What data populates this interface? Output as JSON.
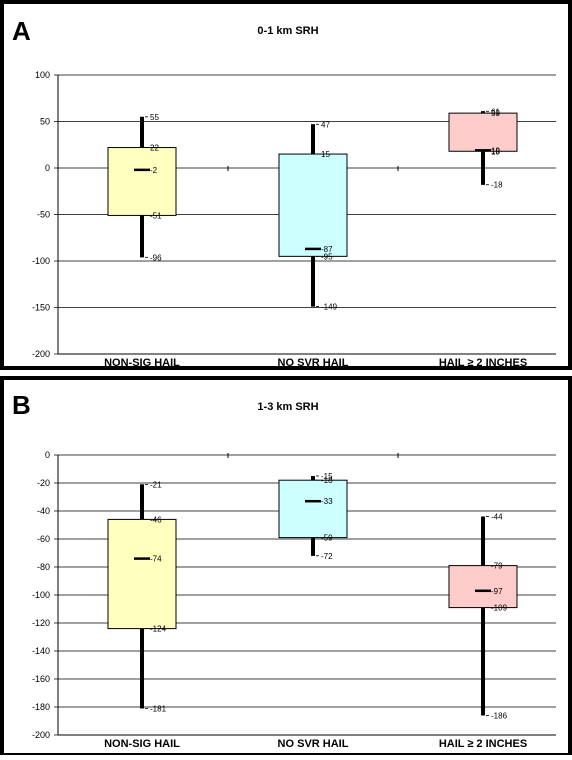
{
  "chart_data": [
    {
      "panel_letter": "A",
      "type": "box",
      "title": "0-1 km SRH",
      "ylim": [
        -200,
        100
      ],
      "yticks": [
        100,
        50,
        0,
        -50,
        -100,
        -150,
        -200
      ],
      "grid": true,
      "categories": [
        "NON-SIG HAIL",
        "NO SVR HAIL",
        "HAIL ≥ 2 INCHES"
      ],
      "boxes": [
        {
          "max": 55,
          "q3": 22,
          "median": -2,
          "q1": -51,
          "min": -96,
          "color": "#ffffc0",
          "labels": {
            "max": "55",
            "q3": "22",
            "median": "-2",
            "q1": "-51",
            "min": "-96"
          }
        },
        {
          "max": 47,
          "q3": 15,
          "median": -87,
          "q1": -95,
          "min": -149,
          "color": "#ccffff",
          "labels": {
            "max": "47",
            "q3": "15",
            "median": "-87",
            "q1": "-95",
            "min": "-149"
          }
        },
        {
          "max": 61,
          "q3": 59,
          "median": 19,
          "q1": 18,
          "min": -18,
          "color": "#ffcccc",
          "labels": {
            "max": "61",
            "q3": "59",
            "median": "19",
            "q1": "18",
            "min": "-18"
          }
        }
      ]
    },
    {
      "panel_letter": "B",
      "type": "box",
      "title": "1-3 km SRH",
      "ylim": [
        -200,
        0
      ],
      "yticks": [
        0,
        -20,
        -40,
        -60,
        -80,
        -100,
        -120,
        -140,
        -160,
        -180,
        -200
      ],
      "grid": true,
      "categories": [
        "NON-SIG HAIL",
        "NO SVR HAIL",
        "HAIL ≥ 2 INCHES"
      ],
      "boxes": [
        {
          "max": -21,
          "q3": -46,
          "median": -74,
          "q1": -124,
          "min": -181,
          "color": "#ffffc0",
          "labels": {
            "max": "-21",
            "q3": "-46",
            "median": "-74",
            "q1": "-124",
            "min": "-181"
          }
        },
        {
          "max": -15,
          "q3": -18,
          "median": -33,
          "q1": -59,
          "min": -72,
          "color": "#ccffff",
          "labels": {
            "max": "-15",
            "q3": "-18",
            "median": "-33",
            "q1": "-59",
            "min": "-72"
          }
        },
        {
          "max": -44,
          "q3": -79,
          "median": -97,
          "q1": -109,
          "min": -186,
          "color": "#ffcccc",
          "labels": {
            "max": "-44",
            "q3": "-79",
            "median": "-97",
            "q1": "-109",
            "min": "-186"
          }
        }
      ]
    }
  ]
}
